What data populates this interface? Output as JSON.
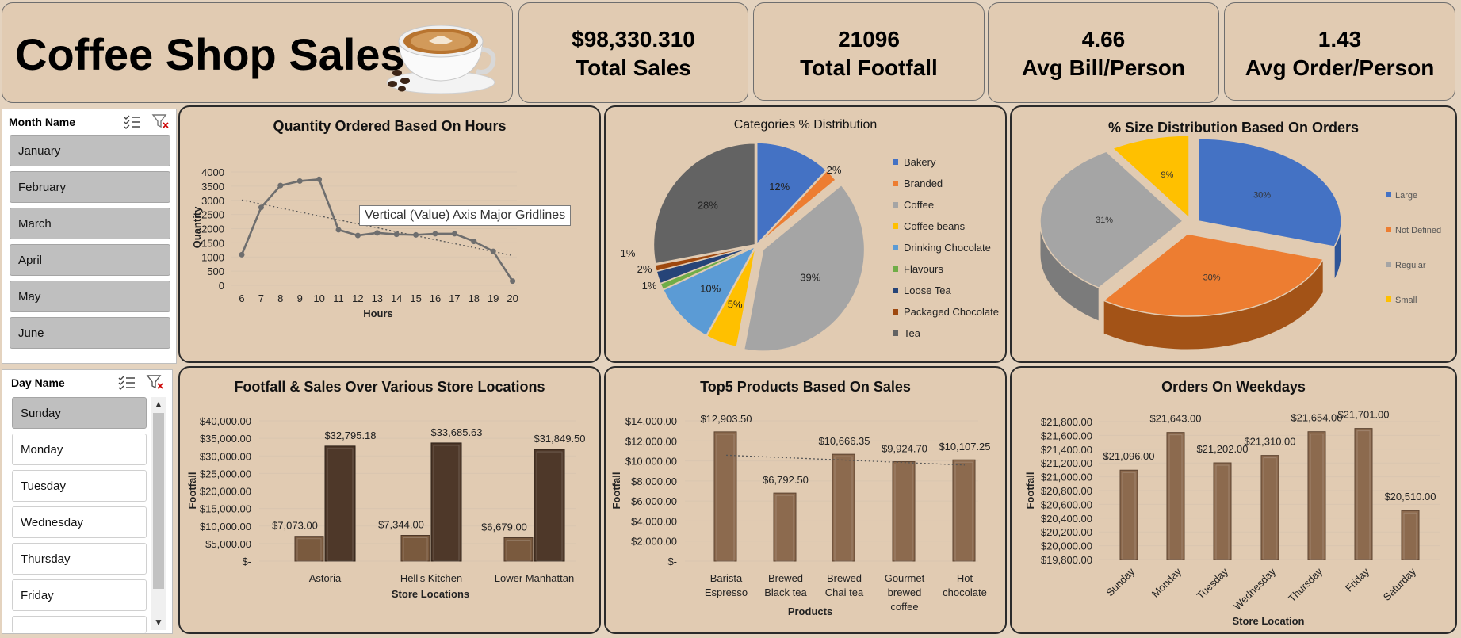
{
  "header": {
    "title": "Coffee Shop Sales",
    "image": "coffee-cup-image"
  },
  "kpis": [
    {
      "value": "$98,330.310",
      "label": "Total Sales"
    },
    {
      "value": "21096",
      "label": "Total Footfall"
    },
    {
      "value": "4.66",
      "label": "Avg Bill/Person"
    },
    {
      "value": "1.43",
      "label": "Avg Order/Person"
    }
  ],
  "month_slicer": {
    "title": "Month Name",
    "items": [
      "January",
      "February",
      "March",
      "April",
      "May",
      "June"
    ]
  },
  "day_slicer": {
    "title": "Day Name",
    "items": [
      "Sunday",
      "Monday",
      "Tuesday",
      "Wednesday",
      "Thursday",
      "Friday"
    ],
    "selected": "Sunday"
  },
  "tooltip": "Vertical (Value) Axis Major Gridlines",
  "colors": {
    "brown": "#7a5a3e",
    "dark_brown": "#4e3829",
    "line": "#6e6e6e"
  },
  "chart_data": [
    {
      "id": "hours",
      "type": "line",
      "title": "Quantity Ordered Based On Hours",
      "xlabel": "Hours",
      "ylabel": "Quantity",
      "x": [
        6,
        7,
        8,
        9,
        10,
        11,
        12,
        13,
        14,
        15,
        16,
        17,
        18,
        19,
        20
      ],
      "values": [
        1080,
        2750,
        3520,
        3680,
        3740,
        1960,
        1760,
        1850,
        1800,
        1780,
        1820,
        1820,
        1550,
        1200,
        150
      ],
      "ylim": [
        0,
        4000
      ],
      "yticks": [
        "0",
        "500",
        "1000",
        "1500",
        "2000",
        "2500",
        "3000",
        "3500",
        "4000"
      ],
      "trendline": true
    },
    {
      "id": "categories",
      "type": "pie",
      "title": "Categories % Distribution",
      "categories": [
        "Bakery",
        "Branded",
        "Coffee",
        "Coffee beans",
        "Drinking Chocolate",
        "Flavours",
        "Loose Tea",
        "Packaged Chocolate",
        "Tea"
      ],
      "values": [
        12,
        2,
        39,
        5,
        10,
        1,
        2,
        1,
        28
      ],
      "labels": [
        "12%",
        "2%",
        "39%",
        "5%",
        "10%",
        "1%",
        "2%",
        "1%",
        "28%"
      ],
      "colors": [
        "#4472c4",
        "#ed7d31",
        "#a5a5a5",
        "#ffc000",
        "#5b9bd5",
        "#70ad47",
        "#264478",
        "#9e480e",
        "#636363"
      ]
    },
    {
      "id": "sizes",
      "type": "pie",
      "title": "% Size Distribution Based On Orders",
      "categories": [
        "Large",
        "Not Defined",
        "Regular",
        "Small"
      ],
      "values": [
        30,
        30,
        31,
        9
      ],
      "labels": [
        "30%",
        "30%",
        "31%",
        "9%"
      ],
      "colors": [
        "#4472c4",
        "#ed7d31",
        "#a5a5a5",
        "#ffc000"
      ]
    },
    {
      "id": "locations",
      "type": "bar",
      "title": "Footfall & Sales Over Various Store Locations",
      "xlabel": "Store Locations",
      "ylabel": "Footfall",
      "categories": [
        "Astoria",
        "Hell's Kitchen",
        "Lower Manhattan"
      ],
      "series": [
        {
          "values": [
            7073,
            7344,
            6679
          ],
          "labels": [
            "$7,073.00",
            "$7,344.00",
            "$6,679.00"
          ]
        },
        {
          "values": [
            32795.18,
            33685.63,
            31849.5
          ],
          "labels": [
            "$32,795.18",
            "$33,685.63",
            "$31,849.50"
          ]
        }
      ],
      "ylim": [
        0,
        40000
      ],
      "yticks": [
        "$-",
        "$5,000.00",
        "$10,000.00",
        "$15,000.00",
        "$20,000.00",
        "$25,000.00",
        "$30,000.00",
        "$35,000.00",
        "$40,000.00"
      ]
    },
    {
      "id": "products",
      "type": "bar",
      "title": "Top5 Products Based On Sales",
      "xlabel": "Products",
      "ylabel": "Footfall",
      "categories": [
        [
          "Barista",
          "Espresso"
        ],
        [
          "Brewed",
          "Black tea"
        ],
        [
          "Brewed",
          "Chai tea"
        ],
        [
          "Gourmet",
          "brewed",
          "coffee"
        ],
        [
          "Hot",
          "chocolate"
        ]
      ],
      "values": [
        12903.5,
        6792.5,
        10666.35,
        9924.7,
        10107.25
      ],
      "labels": [
        "$12,903.50",
        "$6,792.50",
        "$10,666.35",
        "$9,924.70",
        "$10,107.25"
      ],
      "ylim": [
        0,
        14000
      ],
      "yticks": [
        "$-",
        "$2,000.00",
        "$4,000.00",
        "$6,000.00",
        "$8,000.00",
        "$10,000.00",
        "$12,000.00",
        "$14,000.00"
      ],
      "trendline": true
    },
    {
      "id": "weekdays",
      "type": "bar",
      "title": "Orders On Weekdays",
      "xlabel": "Store Location",
      "ylabel": "Footfall",
      "categories": [
        "Sunday",
        "Monday",
        "Tuesday",
        "Wednesday",
        "Thursday",
        "Friday",
        "Saturday"
      ],
      "values": [
        21096,
        21643,
        21202,
        21310,
        21654,
        21701,
        20510
      ],
      "labels": [
        "$21,096.00",
        "$21,643.00",
        "$21,202.00",
        "$21,310.00",
        "$21,654.00",
        "$21,701.00",
        "$20,510.00"
      ],
      "ylim": [
        19800,
        21800
      ],
      "yticks": [
        "$19,800.00",
        "$20,000.00",
        "$20,200.00",
        "$20,400.00",
        "$20,600.00",
        "$20,800.00",
        "$21,000.00",
        "$21,200.00",
        "$21,400.00",
        "$21,600.00",
        "$21,800.00"
      ]
    }
  ]
}
